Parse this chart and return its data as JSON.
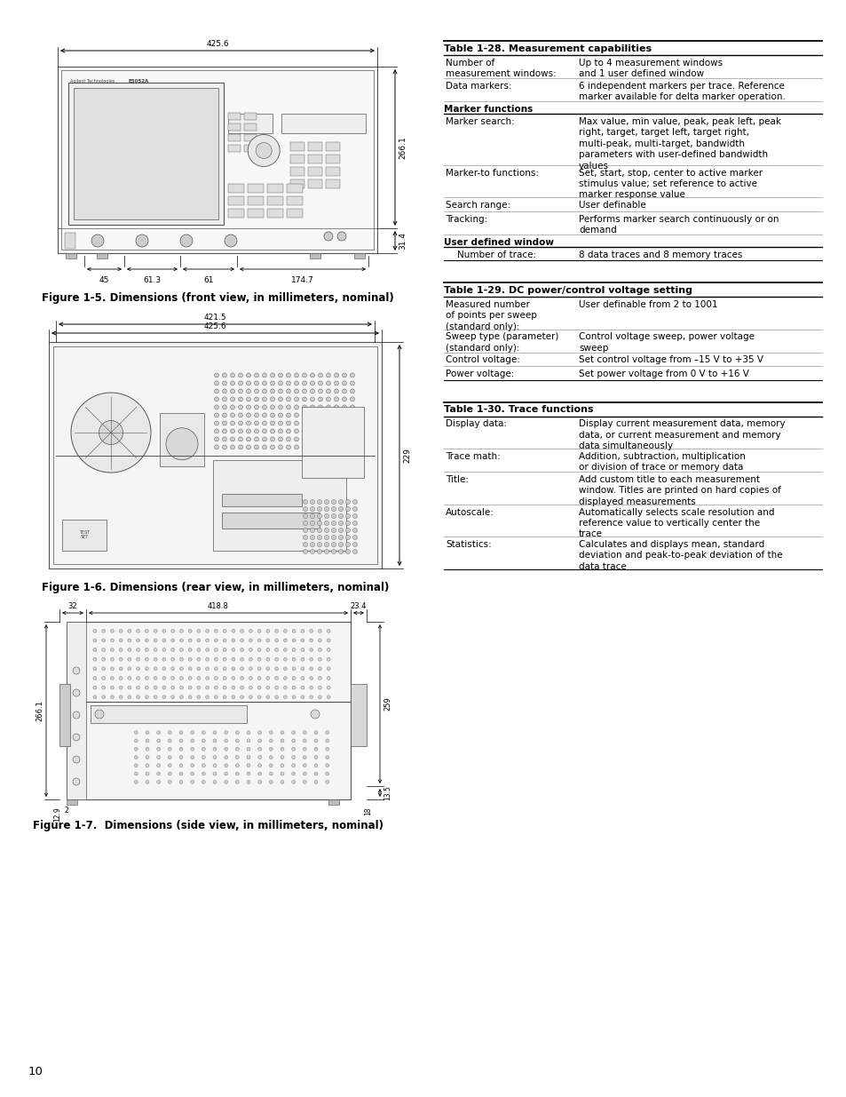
{
  "bg_color": "#ffffff",
  "page_number": "10",
  "fig1_caption": "Figure 1-5. Dimensions (front view, in millimeters, nominal)",
  "fig2_caption": "Figure 1-6. Dimensions (rear view, in millimeters, nominal)",
  "fig3_caption": "Figure 1-7.  Dimensions (side view, in millimeters, nominal)",
  "table28_title": "Table 1-28. Measurement capabilities",
  "table28_rows": [
    [
      "Number of\nmeasurement windows:",
      "Up to 4 measurement windows\nand 1 user defined window"
    ],
    [
      "Data markers:",
      "6 independent markers per trace. Reference\nmarker available for delta marker operation."
    ],
    [
      "__bold__Marker functions",
      ""
    ],
    [
      "Marker search:",
      "Max value, min value, peak, peak left, peak\nright, target, target left, target right,\nmulti-peak, multi-target, bandwidth\nparameters with user-defined bandwidth\nvalues"
    ],
    [
      "Marker-to functions:",
      "Set, start, stop, center to active marker\nstimulus value; set reference to active\nmarker response value"
    ],
    [
      "Search range:",
      "User definable"
    ],
    [
      "Tracking:",
      "Performs marker search continuously or on\ndemand"
    ],
    [
      "__bold__User defined window",
      ""
    ],
    [
      "    Number of trace:",
      "8 data traces and 8 memory traces"
    ]
  ],
  "table29_title": "Table 1-29. DC power/control voltage setting",
  "table29_rows": [
    [
      "Measured number\nof points per sweep\n(standard only):",
      "User definable from 2 to 1001"
    ],
    [
      "Sweep type (parameter)\n(standard only):",
      "Control voltage sweep, power voltage\nsweep"
    ],
    [
      "Control voltage:",
      "Set control voltage from –15 V to +35 V"
    ],
    [
      "Power voltage:",
      "Set power voltage from 0 V to +16 V"
    ]
  ],
  "table30_title": "Table 1-30. Trace functions",
  "table30_rows": [
    [
      "Display data:",
      "Display current measurement data, memory\ndata, or current measurement and memory\ndata simultaneously"
    ],
    [
      "Trace math:",
      "Addition, subtraction, multiplication\nor division of trace or memory data"
    ],
    [
      "Title:",
      "Add custom title to each measurement\nwindow. Titles are printed on hard copies of\ndisplayed measurements"
    ],
    [
      "Autoscale:",
      "Automatically selects scale resolution and\nreference value to vertically center the\ntrace"
    ],
    [
      "Statistics:",
      "Calculates and displays mean, standard\ndeviation and peak-to-peak deviation of the\ndata trace"
    ]
  ]
}
